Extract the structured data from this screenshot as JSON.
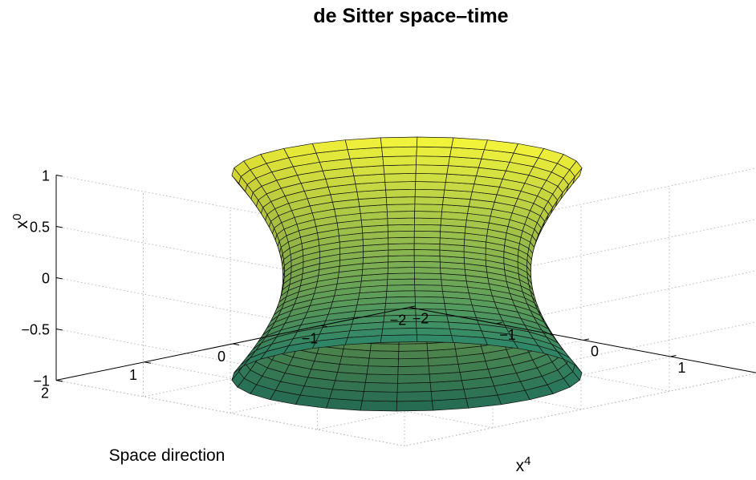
{
  "chart_data": {
    "type": "surface",
    "surface": "hyperboloid of one sheet",
    "equation": "x1^2 + x4^2 - x0^2 = 1",
    "title": "de Sitter space–time",
    "xlabel": "x",
    "xlabel_superscript": "4",
    "ylabel": "Space direction",
    "zlabel": "x",
    "zlabel_superscript": "0",
    "xlim": [
      -2,
      2
    ],
    "ylim": [
      -2,
      2
    ],
    "zlim": [
      -1,
      1
    ],
    "x_ticks": [
      "−2",
      "−1",
      "0",
      "1",
      "2"
    ],
    "y_ticks": [
      "−2",
      "−1",
      "0",
      "1",
      "2"
    ],
    "z_ticks": [
      "−1",
      "−0.5",
      "0",
      "0.5",
      "1"
    ],
    "z_tick_values": [
      -1,
      -0.5,
      0,
      0.5,
      1
    ],
    "param_range": [
      -0.88,
      0.88
    ],
    "mesh": {
      "u_lines": 30,
      "t_lines": 30
    },
    "grid": true,
    "colormap": "yellow-green",
    "colors": {
      "low": "#2e8b6d",
      "high": "#f5f53a",
      "mesh": "#111111",
      "grid": "#b8b8b8"
    }
  }
}
